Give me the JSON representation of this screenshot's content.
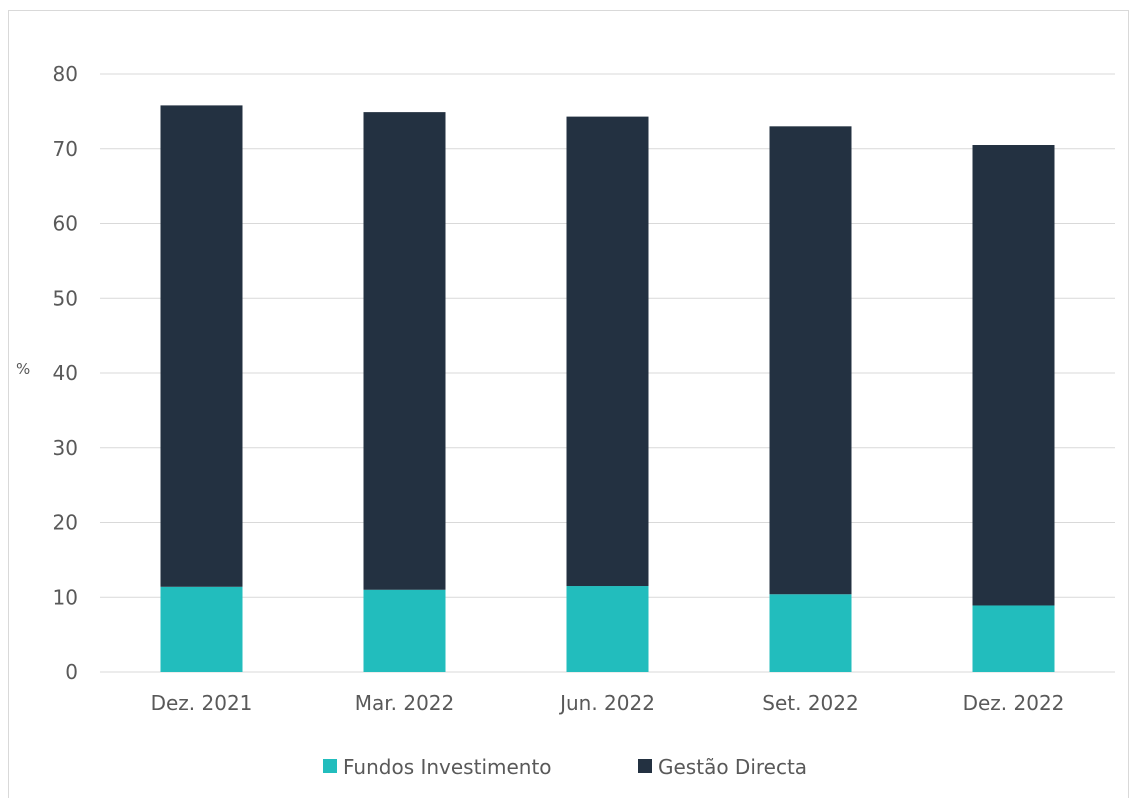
{
  "chart_data": {
    "type": "bar",
    "stacked": true,
    "categories": [
      "Dez. 2021",
      "Mar. 2022",
      "Jun. 2022",
      "Set. 2022",
      "Dez. 2022"
    ],
    "series": [
      {
        "name": "Fundos Investimento",
        "values": [
          11.4,
          11.0,
          11.5,
          10.4,
          8.9
        ],
        "color": "#22bdbd"
      },
      {
        "name": "Gestão Directa",
        "values": [
          64.4,
          63.9,
          62.8,
          62.6,
          61.6
        ],
        "color": "#233141"
      }
    ],
    "ylabel": "%",
    "ylim": [
      0,
      80
    ],
    "yticks": [
      0,
      10,
      20,
      30,
      40,
      50,
      60,
      70,
      80
    ],
    "ytick_labels": [
      "0",
      "10",
      "20",
      "30",
      "40",
      "50",
      "60",
      "70",
      "80"
    ],
    "grid": true,
    "legend": "bottom"
  }
}
